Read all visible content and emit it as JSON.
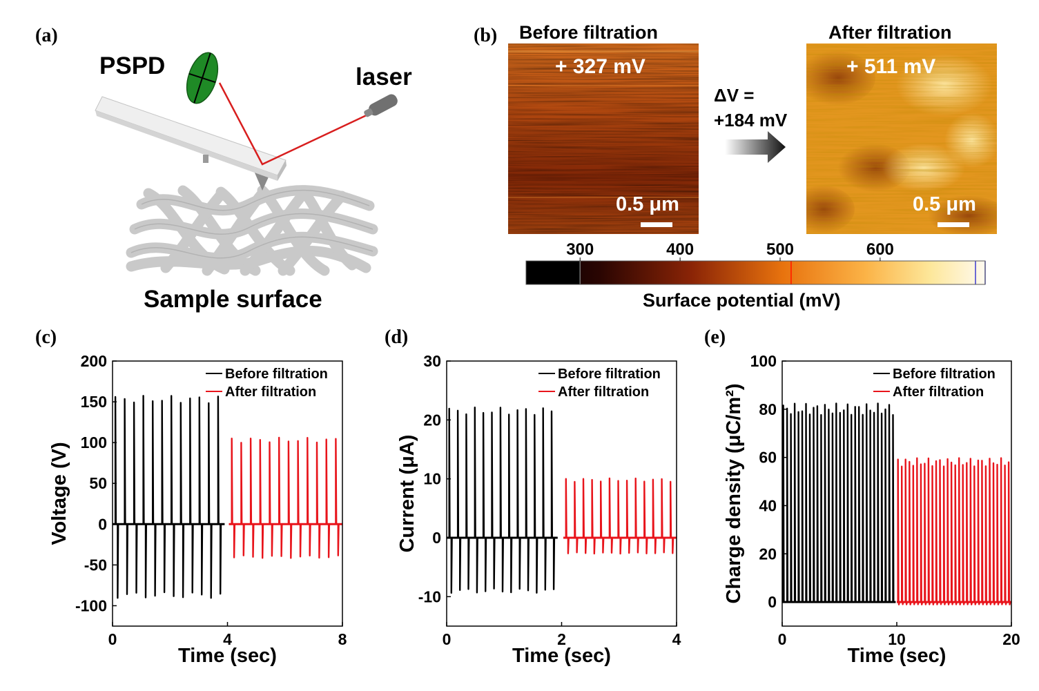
{
  "panel_labels": {
    "a": "(a)",
    "b": "(b)",
    "c": "(c)",
    "d": "(d)",
    "e": "(e)"
  },
  "schematic": {
    "pspd_label": "PSPD",
    "laser_label": "laser",
    "sample_label": "Sample surface",
    "colors": {
      "pspd": "#1f8a26",
      "beam": "#d81e1e",
      "cantilever": "#eaeaea",
      "fibers": "#c8c8c8"
    }
  },
  "afm": {
    "before": {
      "title": "Before filtration",
      "value": "+ 327 mV",
      "scale": "0.5 μm"
    },
    "after": {
      "title": "After filtration",
      "value": "+ 511 mV",
      "scale": "0.5 μm"
    },
    "delta_line1": "ΔV =",
    "delta_line2": "+184 mV",
    "colorbar": {
      "title": "Surface potential (mV)",
      "ticks": [
        "300",
        "400",
        "500",
        "600"
      ],
      "tick_values": [
        300,
        400,
        500,
        600
      ],
      "range": [
        246,
        705
      ],
      "black_until": 300,
      "marker_value": 511,
      "marker_color": "#ff2a00",
      "end_color": "#3b3bd0"
    }
  },
  "chart_data": [
    {
      "id": "c",
      "type": "line",
      "xlabel": "Time (sec)",
      "ylabel": "Voltage (V)",
      "xlim": [
        0,
        8
      ],
      "ylim": [
        -125,
        200
      ],
      "xticks": [
        0,
        4,
        8
      ],
      "xtick_labels": [
        "0",
        "4",
        "8"
      ],
      "yticks": [
        -100,
        -50,
        0,
        50,
        100,
        150,
        200
      ],
      "ytick_labels": [
        "-100",
        "-50",
        "0",
        "50",
        "100",
        "150",
        "200"
      ],
      "legend": [
        "Before filtration",
        "After filtration"
      ],
      "legend_position": "top-right",
      "series": [
        {
          "name": "Before filtration",
          "color": "#000000",
          "x_range": [
            0,
            3.9
          ],
          "pulses": 12,
          "pos": 153,
          "neg": -87
        },
        {
          "name": "After filtration",
          "color": "#e8141b",
          "x_range": [
            4.05,
            8
          ],
          "pulses": 12,
          "pos": 103,
          "neg": -40
        }
      ]
    },
    {
      "id": "d",
      "type": "line",
      "xlabel": "Time (sec)",
      "ylabel": "Current (μA)",
      "xlim": [
        0,
        4
      ],
      "ylim": [
        -15,
        30
      ],
      "xticks": [
        0,
        2,
        4
      ],
      "xtick_labels": [
        "0",
        "2",
        "4"
      ],
      "yticks": [
        -10,
        0,
        10,
        20,
        30
      ],
      "ytick_labels": [
        "-10",
        "0",
        "10",
        "20",
        "30"
      ],
      "legend": [
        "Before filtration",
        "After filtration"
      ],
      "legend_position": "top-right",
      "series": [
        {
          "name": "Before filtration",
          "color": "#000000",
          "x_range": [
            0,
            1.93
          ],
          "pulses": 13,
          "pos": 21.5,
          "neg": -9
        },
        {
          "name": "After filtration",
          "color": "#e8141b",
          "x_range": [
            2.03,
            4
          ],
          "pulses": 13,
          "pos": 9.8,
          "neg": -2.6
        }
      ]
    },
    {
      "id": "e",
      "type": "line",
      "xlabel": "Time (sec)",
      "ylabel": "Charge density (μC/m²)",
      "xlim": [
        0,
        20
      ],
      "ylim": [
        -10,
        100
      ],
      "xticks": [
        0,
        10,
        20
      ],
      "xtick_labels": [
        "0",
        "10",
        "20"
      ],
      "yticks": [
        0,
        20,
        40,
        60,
        80,
        100
      ],
      "ytick_labels": [
        "0",
        "20",
        "40",
        "60",
        "80",
        "100"
      ],
      "legend": [
        "Before filtration",
        "After filtration"
      ],
      "legend_position": "top-right",
      "series": [
        {
          "name": "Before filtration",
          "color": "#000000",
          "x_range": [
            0,
            9.9
          ],
          "pulses": 30,
          "pos": 80,
          "neg": 0
        },
        {
          "name": "After filtration",
          "color": "#e8141b",
          "x_range": [
            10,
            20
          ],
          "pulses": 30,
          "pos": 58,
          "neg": -1
        }
      ]
    }
  ]
}
